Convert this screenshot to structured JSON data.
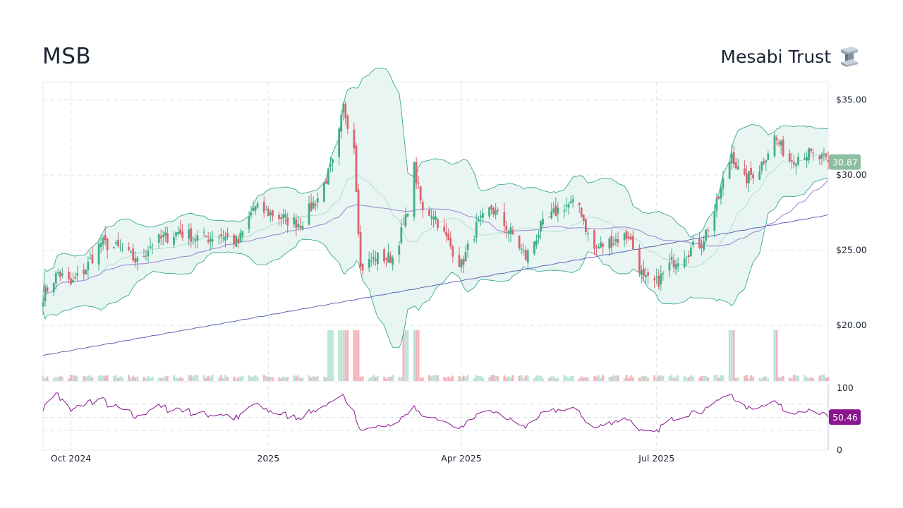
{
  "header": {
    "ticker": "MSB",
    "company": "Mesabi Trust"
  },
  "logo": {
    "icon": "steel-beam-icon"
  },
  "colors": {
    "up": "#3fae85",
    "down": "#d9636f",
    "bollinger_fill": "#e6f4f1",
    "bollinger_line": "#3ba894",
    "ma_long": "#5a64b4",
    "ma_short": "#9a82d2",
    "rsi": "#8a168f",
    "grid": "#d9e4ec",
    "last_price_badge": "#8cbfa2"
  },
  "chart_data": {
    "type": "candlestick",
    "price_axis": {
      "ylim": [
        16.3,
        36.2
      ],
      "ticks": [
        35,
        30,
        25,
        20
      ],
      "tick_labels": [
        "$35.00",
        "$30.00",
        "$25.00",
        "$20.00"
      ]
    },
    "x_axis": {
      "range": [
        "2024-09-18",
        "2025-09-19"
      ],
      "ticks": [
        "2024-10-01",
        "2025-01-01",
        "2025-04-01",
        "2025-07-01"
      ],
      "tick_labels": [
        "Oct 2024",
        "2025",
        "Apr 2025",
        "Jul 2025"
      ]
    },
    "anchors": [
      [
        "2024-09-18",
        22.0
      ],
      [
        "2024-09-25",
        23.5
      ],
      [
        "2024-10-01",
        22.7
      ],
      [
        "2024-10-08",
        23.8
      ],
      [
        "2024-10-15",
        25.5
      ],
      [
        "2024-10-25",
        25.0
      ],
      [
        "2024-11-01",
        24.2
      ],
      [
        "2024-11-08",
        25.5
      ],
      [
        "2024-11-20",
        26.2
      ],
      [
        "2024-11-30",
        25.8
      ],
      [
        "2024-12-10",
        26.0
      ],
      [
        "2024-12-18",
        25.5
      ],
      [
        "2024-12-25",
        27.8
      ],
      [
        "2025-01-01",
        27.5
      ],
      [
        "2025-01-10",
        27.0
      ],
      [
        "2025-01-16",
        26.8
      ],
      [
        "2025-01-24",
        28.5
      ],
      [
        "2025-02-01",
        31.0
      ],
      [
        "2025-02-05",
        34.5
      ],
      [
        "2025-02-10",
        32.0
      ],
      [
        "2025-02-13",
        23.8
      ],
      [
        "2025-02-20",
        24.5
      ],
      [
        "2025-02-28",
        24.5
      ],
      [
        "2025-03-06",
        27.0
      ],
      [
        "2025-03-10",
        30.5
      ],
      [
        "2025-03-14",
        27.5
      ],
      [
        "2025-03-19",
        27.5
      ],
      [
        "2025-03-24",
        26.0
      ],
      [
        "2025-04-01",
        24.0
      ],
      [
        "2025-04-08",
        26.5
      ],
      [
        "2025-04-15",
        27.8
      ],
      [
        "2025-04-25",
        26.0
      ],
      [
        "2025-05-01",
        24.5
      ],
      [
        "2025-05-08",
        26.5
      ],
      [
        "2025-05-18",
        28.0
      ],
      [
        "2025-05-26",
        28.0
      ],
      [
        "2025-06-01",
        25.0
      ],
      [
        "2025-06-08",
        25.5
      ],
      [
        "2025-06-18",
        26.0
      ],
      [
        "2025-06-25",
        23.0
      ],
      [
        "2025-07-01",
        22.8
      ],
      [
        "2025-07-08",
        24.2
      ],
      [
        "2025-07-16",
        25.0
      ],
      [
        "2025-07-22",
        25.5
      ],
      [
        "2025-07-29",
        28.0
      ],
      [
        "2025-08-05",
        31.5
      ],
      [
        "2025-08-10",
        29.5
      ],
      [
        "2025-08-18",
        30.5
      ],
      [
        "2025-08-25",
        32.5
      ],
      [
        "2025-09-01",
        31.0
      ],
      [
        "2025-09-08",
        31.5
      ],
      [
        "2025-09-19",
        30.87
      ]
    ],
    "last_price": {
      "value": 30.87,
      "label": "30.87"
    },
    "volume": {
      "spikes": [
        [
          "2025-01-30",
          2.5
        ],
        [
          "2025-02-03",
          3.0
        ],
        [
          "2025-02-05",
          4.2
        ],
        [
          "2025-02-07",
          3.8
        ],
        [
          "2025-02-10",
          2.8
        ],
        [
          "2025-02-11",
          3.0
        ],
        [
          "2025-03-10",
          4.4
        ],
        [
          "2025-03-11",
          2.3
        ],
        [
          "2025-03-06",
          2.0
        ],
        [
          "2025-08-05",
          2.0
        ],
        [
          "2025-08-25",
          1.8
        ]
      ]
    },
    "rsi": {
      "ylim": [
        0,
        100
      ],
      "ticks": [
        100,
        0
      ],
      "tick_labels": [
        "100",
        "0"
      ],
      "bands": [
        70,
        50,
        30
      ],
      "last_value": 50.46,
      "label": "50.46"
    },
    "overlays": [
      "bollinger_bands_20",
      "moving_average_50",
      "moving_average_200"
    ]
  }
}
